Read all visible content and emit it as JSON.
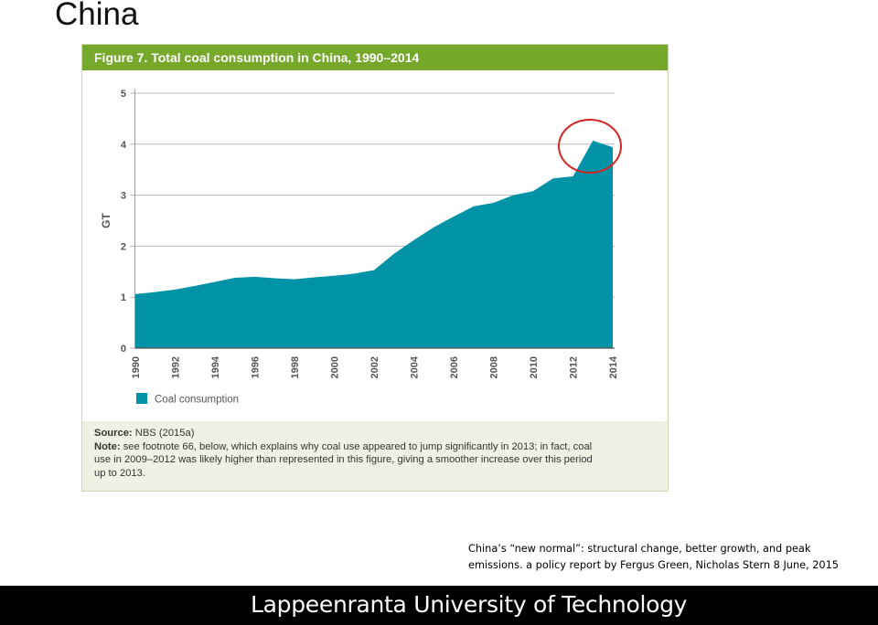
{
  "slide": {
    "title": "China",
    "caption_line1": "China’s “new normal”: structural change, better growth, and peak",
    "caption_line2": "emissions. a policy report by Fergus Green, Nicholas Stern 8 June, 2015",
    "footer": "Lappeenranta University of Technology"
  },
  "figure": {
    "header": "Figure 7. Total coal consumption in China, 1990–2014",
    "source_label": "Source:",
    "source_text": "NBS (2015a)",
    "note_label": "Note:",
    "note_line1": "see footnote 66, below, which explains why coal use appeared to jump significantly in 2013; in fact, coal",
    "note_line2": "use in 2009–2012 was likely higher than represented in this figure, giving a smoother increase over this period",
    "note_line3": "up to 2013."
  },
  "colors": {
    "header_green": "#76a82c",
    "area_teal": "#0093a8",
    "highlight_red": "#d42626",
    "footer_black": "#000000"
  },
  "chart_data": {
    "type": "area",
    "title": "Figure 7. Total coal consumption in China, 1990–2014",
    "xlabel": "",
    "ylabel": "GT",
    "x": [
      1990,
      1991,
      1992,
      1993,
      1994,
      1995,
      1996,
      1997,
      1998,
      1999,
      2000,
      2001,
      2002,
      2003,
      2004,
      2005,
      2006,
      2007,
      2008,
      2009,
      2010,
      2011,
      2012,
      2013,
      2014
    ],
    "x_tick_labels": [
      "1990",
      "1992",
      "1994",
      "1996",
      "1998",
      "2000",
      "2002",
      "2004",
      "2006",
      "2008",
      "2010",
      "2012",
      "2014"
    ],
    "y_ticks": [
      0,
      1,
      2,
      3,
      4,
      5
    ],
    "ylim": [
      0,
      5
    ],
    "series": [
      {
        "name": "Coal consumption",
        "values": [
          1.06,
          1.1,
          1.15,
          1.22,
          1.3,
          1.38,
          1.4,
          1.37,
          1.35,
          1.39,
          1.42,
          1.46,
          1.53,
          1.85,
          2.12,
          2.37,
          2.58,
          2.78,
          2.85,
          3.0,
          3.08,
          3.33,
          3.37,
          4.07,
          3.94
        ]
      }
    ],
    "legend": {
      "position": "bottom-left",
      "label": "Coal consumption"
    },
    "grid": true
  }
}
